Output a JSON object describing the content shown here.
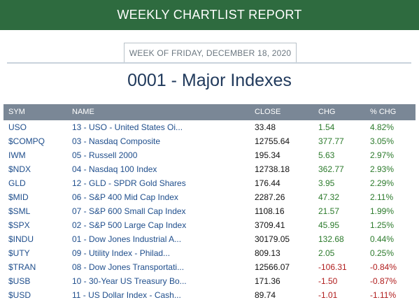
{
  "header": {
    "title": "WEEKLY CHARTLIST REPORT"
  },
  "week_label": "WEEK OF FRIDAY, DECEMBER 18, 2020",
  "page_title": "0001 - Major Indexes",
  "table": {
    "columns": [
      "SYM",
      "NAME",
      "CLOSE",
      "CHG",
      "% CHG"
    ],
    "rows": [
      {
        "sym": "USO",
        "name": "13 - USO - United States Oi...",
        "close": "33.48",
        "chg": "1.54",
        "pct": "4.82%",
        "dir": "pos"
      },
      {
        "sym": "$COMPQ",
        "name": "03 - Nasdaq Composite",
        "close": "12755.64",
        "chg": "377.77",
        "pct": "3.05%",
        "dir": "pos"
      },
      {
        "sym": "IWM",
        "name": "05 - Russell 2000",
        "close": "195.34",
        "chg": "5.63",
        "pct": "2.97%",
        "dir": "pos"
      },
      {
        "sym": "$NDX",
        "name": "04 - Nasdaq 100 Index",
        "close": "12738.18",
        "chg": "362.77",
        "pct": "2.93%",
        "dir": "pos"
      },
      {
        "sym": "GLD",
        "name": "12 - GLD - SPDR Gold Shares",
        "close": "176.44",
        "chg": "3.95",
        "pct": "2.29%",
        "dir": "pos"
      },
      {
        "sym": "$MID",
        "name": "06 - S&P 400 Mid Cap Index",
        "close": "2287.26",
        "chg": "47.32",
        "pct": "2.11%",
        "dir": "pos"
      },
      {
        "sym": "$SML",
        "name": "07 - S&P 600 Small Cap Index",
        "close": "1108.16",
        "chg": "21.57",
        "pct": "1.99%",
        "dir": "pos"
      },
      {
        "sym": "$SPX",
        "name": "02 - S&P 500 Large Cap Index",
        "close": "3709.41",
        "chg": "45.95",
        "pct": "1.25%",
        "dir": "pos"
      },
      {
        "sym": "$INDU",
        "name": "01 - Dow Jones Industrial A...",
        "close": "30179.05",
        "chg": "132.68",
        "pct": "0.44%",
        "dir": "pos"
      },
      {
        "sym": "$UTY",
        "name": "09 - Utility Index - Philad...",
        "close": "809.13",
        "chg": "2.05",
        "pct": "0.25%",
        "dir": "pos"
      },
      {
        "sym": "$TRAN",
        "name": "08 - Dow Jones Transportati...",
        "close": "12566.07",
        "chg": "-106.31",
        "pct": "-0.84%",
        "dir": "neg"
      },
      {
        "sym": "$USB",
        "name": "10 - 30-Year US Treasury Bo...",
        "close": "171.36",
        "chg": "-1.50",
        "pct": "-0.87%",
        "dir": "neg"
      },
      {
        "sym": "$USD",
        "name": "11 - US Dollar Index - Cash...",
        "close": "89.74",
        "chg": "-1.01",
        "pct": "-1.11%",
        "dir": "neg"
      }
    ]
  },
  "colors": {
    "banner": "#2e6b3f",
    "header_bg": "#7a8796",
    "positive": "#2b7a2b",
    "negative": "#b01c1c",
    "link": "#1f4e8c"
  }
}
